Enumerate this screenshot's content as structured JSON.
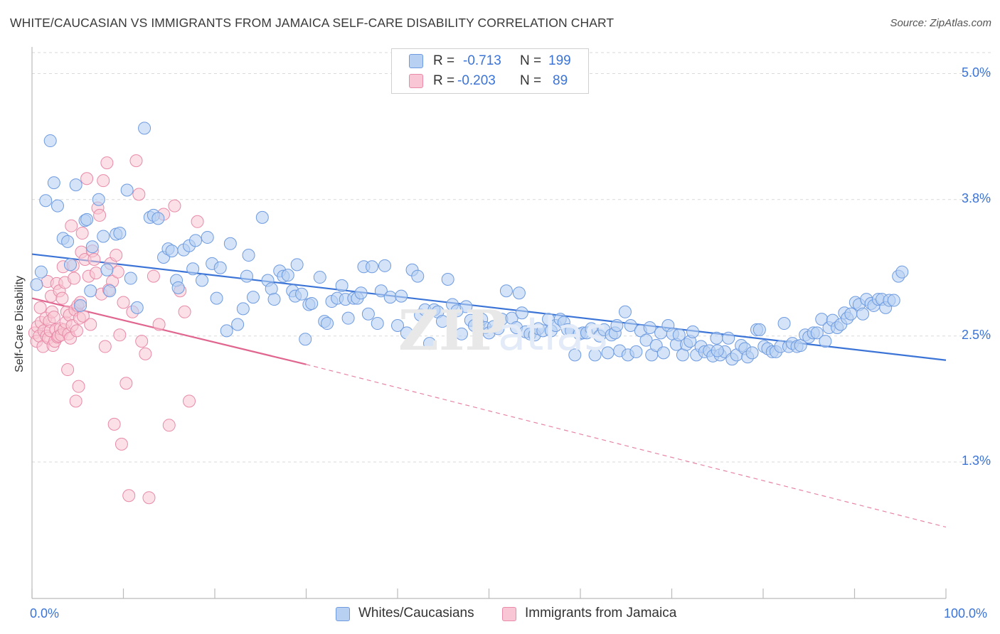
{
  "title": "WHITE/CAUCASIAN VS IMMIGRANTS FROM JAMAICA SELF-CARE DISABILITY CORRELATION CHART",
  "source": "Source: ZipAtlas.com",
  "legend": {
    "row1": {
      "r_label": "R =",
      "r_value": "-0.713",
      "n_label": "N =",
      "n_value": "199"
    },
    "row2": {
      "r_label": "R =",
      "r_value": "-0.203",
      "n_label": "N =",
      "n_value": "89"
    }
  },
  "bottom_legend": {
    "series1": "Whites/Caucasians",
    "series2": "Immigrants from Jamaica"
  },
  "colors": {
    "blue_fill": "#b8d0f2",
    "blue_stroke": "#6e9be0",
    "blue_line": "#3b74d6",
    "pink_fill": "#f8c6d4",
    "pink_stroke": "#e88aa8",
    "pink_line": "#e06690",
    "grid": "#d9d9d9",
    "axis_text": "#3b74d6"
  },
  "chart_data": {
    "type": "scatter",
    "title": "WHITE/CAUCASIAN VS IMMIGRANTS FROM JAMAICA SELF-CARE DISABILITY CORRELATION CHART",
    "xlabel": "",
    "ylabel": "Self-Care Disability",
    "xlim": [
      0,
      100
    ],
    "ylim": [
      0,
      5.2
    ],
    "x_tick_labels": [
      "0.0%",
      "100.0%"
    ],
    "y_ticks": [
      1.3,
      2.5,
      3.8,
      5.0
    ],
    "y_tick_labels": [
      "1.3%",
      "2.5%",
      "3.8%",
      "5.0%"
    ],
    "grid": true,
    "legend_position": "top-center",
    "series": [
      {
        "name": "Whites/Caucasians",
        "r": -0.713,
        "n": 199,
        "trend": {
          "x": [
            0,
            100
          ],
          "y": [
            3.28,
            2.27
          ],
          "style": "solid"
        },
        "points": [
          [
            0.5,
            2.99
          ],
          [
            1,
            3.11
          ],
          [
            1.5,
            3.79
          ],
          [
            2,
            4.36
          ],
          [
            2.4,
            3.96
          ],
          [
            2.8,
            3.74
          ],
          [
            3.4,
            3.43
          ],
          [
            3.9,
            3.4
          ],
          [
            4.2,
            3.18
          ],
          [
            4.8,
            3.94
          ],
          [
            5.3,
            2.79
          ],
          [
            5.8,
            3.6
          ],
          [
            6,
            3.61
          ],
          [
            6.4,
            2.93
          ],
          [
            6.6,
            3.35
          ],
          [
            7.3,
            3.8
          ],
          [
            7.8,
            3.45
          ],
          [
            8.2,
            3.13
          ],
          [
            8.5,
            2.93
          ],
          [
            9.2,
            3.47
          ],
          [
            9.6,
            3.48
          ],
          [
            10.4,
            3.89
          ],
          [
            10.8,
            3.05
          ],
          [
            11.5,
            2.77
          ],
          [
            12.3,
            4.48
          ],
          [
            12.9,
            3.63
          ],
          [
            13.3,
            3.65
          ],
          [
            13.8,
            3.62
          ],
          [
            14.4,
            3.25
          ],
          [
            14.9,
            3.33
          ],
          [
            15.3,
            3.31
          ],
          [
            15.8,
            3.03
          ],
          [
            16,
            2.96
          ],
          [
            16.6,
            3.32
          ],
          [
            17.2,
            3.36
          ],
          [
            17.6,
            3.14
          ],
          [
            17.9,
            3.41
          ],
          [
            18.6,
            3.03
          ],
          [
            19.2,
            3.44
          ],
          [
            19.7,
            3.19
          ],
          [
            20.2,
            2.86
          ],
          [
            20.6,
            3.15
          ],
          [
            21.3,
            2.55
          ],
          [
            21.7,
            3.38
          ],
          [
            22.5,
            2.61
          ],
          [
            23.1,
            2.76
          ],
          [
            23.5,
            3.07
          ],
          [
            23.7,
            3.27
          ],
          [
            24.2,
            2.87
          ],
          [
            25.2,
            3.63
          ],
          [
            25.8,
            3.03
          ],
          [
            26.2,
            2.95
          ],
          [
            26.5,
            2.85
          ],
          [
            27.1,
            3.12
          ],
          [
            27.5,
            3.07
          ],
          [
            28,
            3.08
          ],
          [
            28.5,
            2.93
          ],
          [
            28.8,
            2.88
          ],
          [
            29,
            3.18
          ],
          [
            29.5,
            2.9
          ],
          [
            29.9,
            2.47
          ],
          [
            30.3,
            2.8
          ],
          [
            30.6,
            2.81
          ],
          [
            31.5,
            3.06
          ],
          [
            32,
            2.64
          ],
          [
            32.3,
            2.62
          ],
          [
            32.8,
            2.83
          ],
          [
            33.4,
            2.86
          ],
          [
            33.9,
            2.98
          ],
          [
            34.3,
            2.85
          ],
          [
            34.6,
            2.67
          ],
          [
            35.2,
            2.86
          ],
          [
            35.6,
            2.86
          ],
          [
            36,
            2.91
          ],
          [
            36.3,
            3.16
          ],
          [
            36.8,
            2.71
          ],
          [
            37.2,
            3.16
          ],
          [
            37.8,
            2.62
          ],
          [
            38.2,
            2.93
          ],
          [
            38.6,
            3.17
          ],
          [
            39.2,
            2.87
          ],
          [
            40,
            2.6
          ],
          [
            40.4,
            2.88
          ],
          [
            41,
            2.53
          ],
          [
            41.6,
            3.13
          ],
          [
            42.2,
            3.07
          ],
          [
            42.5,
            2.7
          ],
          [
            43,
            2.75
          ],
          [
            43.5,
            2.43
          ],
          [
            44,
            2.75
          ],
          [
            44.4,
            2.73
          ],
          [
            44.9,
            2.64
          ],
          [
            45.5,
            3.04
          ],
          [
            46,
            2.8
          ],
          [
            46.5,
            2.74
          ],
          [
            47,
            2.52
          ],
          [
            47.5,
            2.78
          ],
          [
            48,
            2.65
          ],
          [
            48.4,
            2.6
          ],
          [
            48.9,
            2.61
          ],
          [
            49.2,
            2.66
          ],
          [
            49.6,
            2.58
          ],
          [
            50,
            2.53
          ],
          [
            50.5,
            2.59
          ],
          [
            51,
            2.57
          ],
          [
            51.4,
            2.66
          ],
          [
            51.9,
            2.93
          ],
          [
            52.5,
            2.67
          ],
          [
            53,
            2.58
          ],
          [
            53.3,
            2.91
          ],
          [
            53.6,
            2.72
          ],
          [
            54,
            2.54
          ],
          [
            54.5,
            2.52
          ],
          [
            55,
            2.51
          ],
          [
            55.4,
            2.57
          ],
          [
            55.9,
            2.55
          ],
          [
            56.5,
            2.66
          ],
          [
            56.8,
            2.55
          ],
          [
            57.3,
            2.6
          ],
          [
            57.8,
            2.66
          ],
          [
            58.2,
            2.63
          ],
          [
            58.6,
            2.56
          ],
          [
            59,
            2.55
          ],
          [
            59.4,
            2.32
          ],
          [
            59.9,
            2.52
          ],
          [
            60.3,
            2.53
          ],
          [
            60.7,
            2.53
          ],
          [
            61.2,
            2.57
          ],
          [
            61.6,
            2.32
          ],
          [
            62.1,
            2.5
          ],
          [
            62.6,
            2.56
          ],
          [
            63,
            2.34
          ],
          [
            63.4,
            2.51
          ],
          [
            63.8,
            2.53
          ],
          [
            64.3,
            2.36
          ],
          [
            64.9,
            2.73
          ],
          [
            65.2,
            2.32
          ],
          [
            65.5,
            2.6
          ],
          [
            66.1,
            2.35
          ],
          [
            66.6,
            2.55
          ],
          [
            67.2,
            2.46
          ],
          [
            67.6,
            2.58
          ],
          [
            67.8,
            2.32
          ],
          [
            68.3,
            2.41
          ],
          [
            68.8,
            2.53
          ],
          [
            69.1,
            2.34
          ],
          [
            69.6,
            2.6
          ],
          [
            70.1,
            2.52
          ],
          [
            70.5,
            2.42
          ],
          [
            70.8,
            2.51
          ],
          [
            71.2,
            2.32
          ],
          [
            71.6,
            2.42
          ],
          [
            72,
            2.45
          ],
          [
            72.3,
            2.54
          ],
          [
            72.7,
            2.32
          ],
          [
            73.2,
            2.4
          ],
          [
            73.6,
            2.35
          ],
          [
            74.1,
            2.36
          ],
          [
            74.5,
            2.31
          ],
          [
            74.9,
            2.48
          ],
          [
            75.3,
            2.32
          ],
          [
            75.8,
            2.35
          ],
          [
            76.2,
            2.48
          ],
          [
            76.6,
            2.28
          ],
          [
            77.1,
            2.32
          ],
          [
            77.6,
            2.41
          ],
          [
            78,
            2.38
          ],
          [
            78.3,
            2.3
          ],
          [
            78.8,
            2.34
          ],
          [
            79.3,
            2.56
          ],
          [
            79.6,
            2.56
          ],
          [
            80.1,
            2.4
          ],
          [
            80.5,
            2.38
          ],
          [
            81,
            2.35
          ],
          [
            81.4,
            2.35
          ],
          [
            81.9,
            2.4
          ],
          [
            82.3,
            2.62
          ],
          [
            82.8,
            2.4
          ],
          [
            83.2,
            2.43
          ],
          [
            83.7,
            2.4
          ],
          [
            84.1,
            2.41
          ],
          [
            84.6,
            2.51
          ],
          [
            85,
            2.49
          ],
          [
            85.5,
            2.53
          ],
          [
            85.9,
            2.53
          ],
          [
            86.4,
            2.66
          ],
          [
            86.8,
            2.45
          ],
          [
            87.2,
            2.58
          ],
          [
            87.6,
            2.65
          ],
          [
            88.1,
            2.58
          ],
          [
            88.5,
            2.61
          ],
          [
            88.9,
            2.72
          ],
          [
            89.2,
            2.67
          ],
          [
            89.6,
            2.71
          ],
          [
            90.1,
            2.82
          ],
          [
            90.5,
            2.8
          ],
          [
            90.9,
            2.71
          ],
          [
            91.3,
            2.85
          ],
          [
            91.8,
            2.81
          ],
          [
            92.1,
            2.79
          ],
          [
            92.6,
            2.85
          ],
          [
            93,
            2.85
          ],
          [
            93.4,
            2.77
          ],
          [
            93.8,
            2.84
          ],
          [
            94.3,
            2.84
          ],
          [
            94.8,
            3.07
          ],
          [
            95.2,
            3.11
          ],
          [
            75,
            2.36
          ],
          [
            64,
            2.6
          ]
        ]
      },
      {
        "name": "Immigrants from Jamaica",
        "r": -0.203,
        "n": 89,
        "trend": {
          "x": [
            0,
            30
          ],
          "y": [
            2.86,
            2.23
          ],
          "style": "solid"
        },
        "trend_dashed": {
          "x": [
            30,
            100
          ],
          "y": [
            2.23,
            0.68
          ],
          "style": "dashed"
        },
        "points": [
          [
            0.3,
            2.53
          ],
          [
            0.5,
            2.45
          ],
          [
            0.6,
            2.59
          ],
          [
            0.8,
            2.5
          ],
          [
            0.9,
            2.77
          ],
          [
            1,
            2.63
          ],
          [
            1.2,
            2.4
          ],
          [
            1.3,
            2.55
          ],
          [
            1.5,
            2.67
          ],
          [
            1.6,
            2.5
          ],
          [
            1.7,
            3.02
          ],
          [
            1.8,
            2.48
          ],
          [
            1.9,
            2.64
          ],
          [
            2,
            2.55
          ],
          [
            2.1,
            2.88
          ],
          [
            2.2,
            2.73
          ],
          [
            2.3,
            2.41
          ],
          [
            2.4,
            2.68
          ],
          [
            2.5,
            2.45
          ],
          [
            2.6,
            2.56
          ],
          [
            2.7,
            3.0
          ],
          [
            2.8,
            2.49
          ],
          [
            2.9,
            2.5
          ],
          [
            3,
            2.93
          ],
          [
            3.1,
            2.57
          ],
          [
            3.2,
            2.51
          ],
          [
            3.3,
            2.86
          ],
          [
            3.4,
            3.16
          ],
          [
            3.5,
            2.56
          ],
          [
            3.6,
            3.01
          ],
          [
            3.7,
            2.63
          ],
          [
            3.8,
            2.73
          ],
          [
            3.9,
            2.18
          ],
          [
            4,
            2.52
          ],
          [
            4.1,
            2.7
          ],
          [
            4.2,
            2.48
          ],
          [
            4.3,
            3.55
          ],
          [
            4.4,
            2.6
          ],
          [
            4.5,
            3.17
          ],
          [
            4.6,
            3.05
          ],
          [
            4.7,
            2.75
          ],
          [
            4.8,
            1.88
          ],
          [
            4.9,
            2.55
          ],
          [
            5,
            2.79
          ],
          [
            5.1,
            2.02
          ],
          [
            5.2,
            2.67
          ],
          [
            5.3,
            2.82
          ],
          [
            5.4,
            3.3
          ],
          [
            5.5,
            3.48
          ],
          [
            5.6,
            2.69
          ],
          [
            5.8,
            3.23
          ],
          [
            6,
            4.0
          ],
          [
            6.2,
            3.07
          ],
          [
            6.4,
            2.61
          ],
          [
            6.6,
            3.31
          ],
          [
            6.8,
            3.23
          ],
          [
            7,
            3.1
          ],
          [
            7.2,
            3.72
          ],
          [
            7.4,
            3.65
          ],
          [
            7.6,
            2.9
          ],
          [
            7.8,
            3.98
          ],
          [
            8,
            2.4
          ],
          [
            8.2,
            4.15
          ],
          [
            8.4,
            2.94
          ],
          [
            8.6,
            3.19
          ],
          [
            8.8,
            3.02
          ],
          [
            9,
            1.66
          ],
          [
            9.2,
            3.27
          ],
          [
            9.4,
            3.11
          ],
          [
            9.6,
            2.51
          ],
          [
            9.8,
            1.47
          ],
          [
            10,
            2.82
          ],
          [
            10.3,
            2.05
          ],
          [
            10.6,
            0.98
          ],
          [
            11,
            2.73
          ],
          [
            11.4,
            4.17
          ],
          [
            11.7,
            3.85
          ],
          [
            12,
            2.45
          ],
          [
            12.4,
            2.33
          ],
          [
            12.8,
            0.96
          ],
          [
            13.3,
            3.07
          ],
          [
            13.9,
            2.61
          ],
          [
            14.4,
            3.66
          ],
          [
            15,
            1.65
          ],
          [
            15.6,
            3.74
          ],
          [
            16.2,
            2.93
          ],
          [
            16.7,
            2.73
          ],
          [
            17.2,
            1.88
          ],
          [
            18.1,
            3.59
          ]
        ]
      }
    ]
  }
}
